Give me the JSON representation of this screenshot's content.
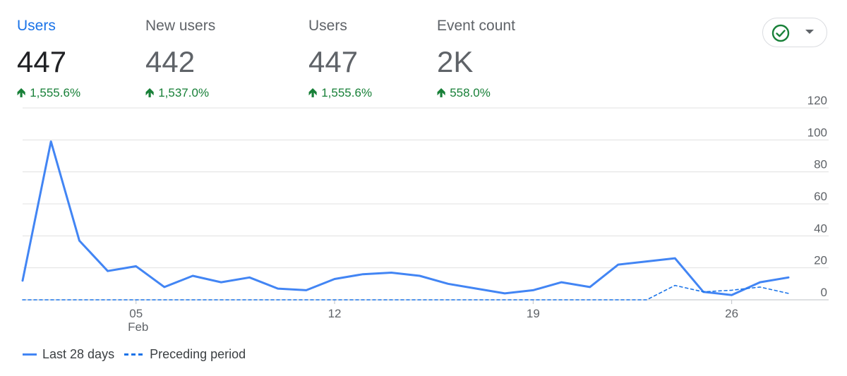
{
  "metrics": [
    {
      "label": "Users",
      "value": "447",
      "change": "1,555.6%"
    },
    {
      "label": "New users",
      "value": "442",
      "change": "1,537.0%"
    },
    {
      "label": "Users",
      "value": "447",
      "change": "1,555.6%"
    },
    {
      "label": "Event count",
      "value": "2K",
      "change": "558.0%"
    }
  ],
  "status_button": {
    "icon": "check-circle-icon",
    "dropdown_icon": "arrow-drop-down-icon"
  },
  "colors": {
    "accent": "#1a73e8",
    "line": "#4285f4",
    "positive": "#188038",
    "check": "#188038"
  },
  "chart_data": {
    "type": "line",
    "x": [
      "Feb 1",
      "Feb 2",
      "Feb 3",
      "Feb 4",
      "Feb 5",
      "Feb 6",
      "Feb 7",
      "Feb 8",
      "Feb 9",
      "Feb 10",
      "Feb 11",
      "Feb 12",
      "Feb 13",
      "Feb 14",
      "Feb 15",
      "Feb 16",
      "Feb 17",
      "Feb 18",
      "Feb 19",
      "Feb 20",
      "Feb 21",
      "Feb 22",
      "Feb 23",
      "Feb 24",
      "Feb 25",
      "Feb 26",
      "Feb 27",
      "Feb 28"
    ],
    "x_ticks": [
      {
        "index": 4,
        "label": "05",
        "sublabel": "Feb"
      },
      {
        "index": 11,
        "label": "12",
        "sublabel": ""
      },
      {
        "index": 18,
        "label": "19",
        "sublabel": ""
      },
      {
        "index": 25,
        "label": "26",
        "sublabel": ""
      }
    ],
    "series": [
      {
        "name": "Last 28 days",
        "style": "solid",
        "values": [
          12,
          99,
          37,
          18,
          21,
          8,
          15,
          11,
          14,
          7,
          6,
          13,
          16,
          17,
          15,
          10,
          7,
          4,
          6,
          11,
          8,
          22,
          24,
          26,
          5,
          3,
          11,
          14
        ]
      },
      {
        "name": "Preceding period",
        "style": "dashed",
        "values": [
          0,
          0,
          0,
          0,
          0,
          0,
          0,
          0,
          0,
          0,
          0,
          0,
          0,
          0,
          0,
          0,
          0,
          0,
          0,
          0,
          0,
          0,
          0,
          9,
          5,
          6,
          8,
          4
        ]
      }
    ],
    "ylim": [
      0,
      120
    ],
    "y_ticks": [
      0,
      20,
      40,
      60,
      80,
      100,
      120
    ],
    "grid": true,
    "legend": "bottom-left",
    "title": "",
    "xlabel": "",
    "ylabel": ""
  }
}
